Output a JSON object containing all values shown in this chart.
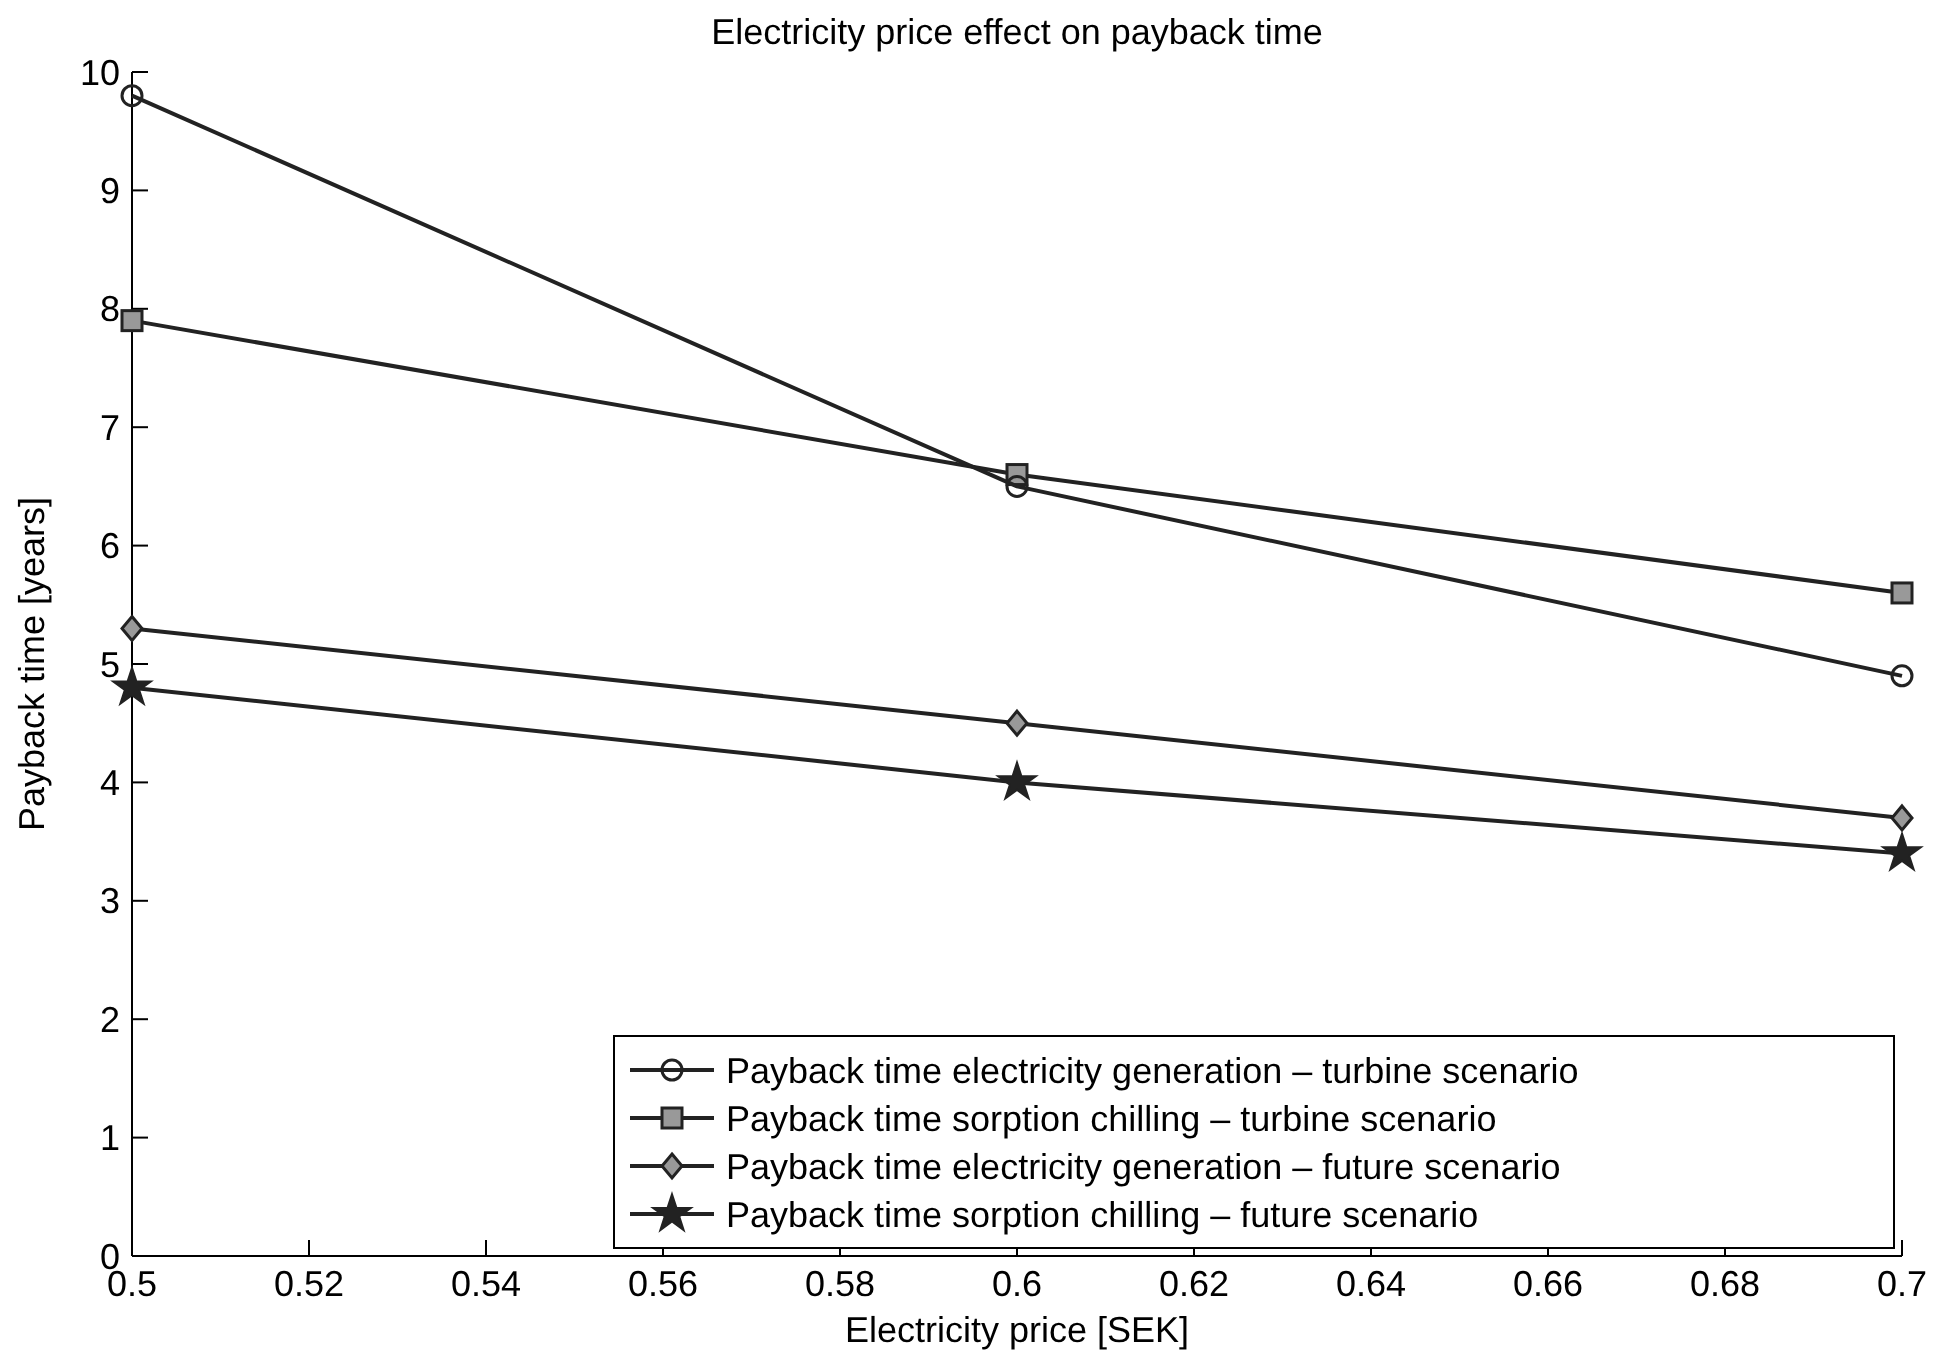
{
  "chart_data": {
    "type": "line",
    "title": "Electricity price effect on payback time",
    "xlabel": "Electricity price [SEK]",
    "ylabel": "Payback time [years]",
    "x": [
      0.5,
      0.6,
      0.7
    ],
    "series": [
      {
        "name": "Payback time electricity generation –  turbine scenario",
        "color": "#222222",
        "marker": "circle",
        "values": [
          9.8,
          6.5,
          4.9
        ]
      },
      {
        "name": "Payback time sorption chilling – turbine scenario",
        "color": "#222222",
        "marker": "square",
        "values": [
          7.9,
          6.6,
          5.6
        ]
      },
      {
        "name": "Payback time electricity generation – future scenario",
        "color": "#222222",
        "marker": "diamond",
        "values": [
          5.3,
          4.5,
          3.7
        ]
      },
      {
        "name": "Payback time sorption chilling – future scenario",
        "color": "#222222",
        "marker": "star",
        "values": [
          4.8,
          4.0,
          3.4
        ]
      }
    ],
    "xlim": [
      0.5,
      0.7
    ],
    "xticks": [
      0.5,
      0.52,
      0.54,
      0.56,
      0.58,
      0.6,
      0.62,
      0.64,
      0.66,
      0.68,
      0.7
    ],
    "ylim": [
      0,
      10
    ],
    "yticks": [
      0,
      1,
      2,
      3,
      4,
      5,
      6,
      7,
      8,
      9,
      10
    ],
    "grid": false,
    "legend": "bottom right",
    "line_style": "solid"
  }
}
